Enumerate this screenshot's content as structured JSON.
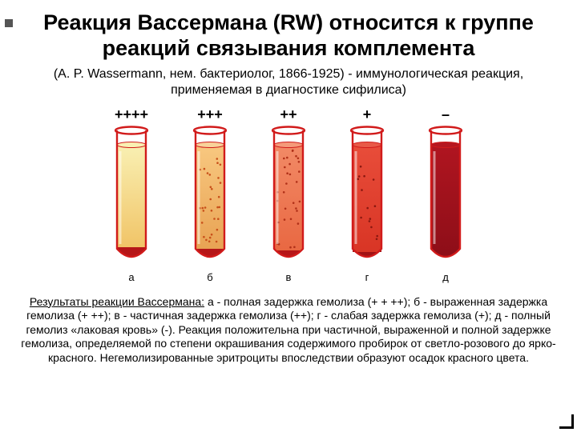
{
  "title": "Реакция Вассермана (RW) относится к группе реакций связывания комплемента",
  "subtitle": "(A. P. Wassermann, нем. бактериолог, 1866-1925) - иммунологическая реакция, применяемая в диагностике сифилиса)",
  "tubes": [
    {
      "top": "++++",
      "bottom": "а",
      "outline": "#d11b1b",
      "fill_top": "#f9f0b3",
      "fill_grad_from": "#f9f0b3",
      "fill_grad_to": "#f0c060",
      "sediment": "#b61618",
      "sediment_h": 14,
      "dots": "#d98820",
      "dot_density": 0
    },
    {
      "top": "+++",
      "bottom": "б",
      "outline": "#d11b1b",
      "fill_top": "#f8d29a",
      "fill_grad_from": "#f8c880",
      "fill_grad_to": "#e7a050",
      "sediment": "#b61618",
      "sediment_h": 12,
      "dots": "#c8501a",
      "dot_density": 30
    },
    {
      "top": "++",
      "bottom": "в",
      "outline": "#d11b1b",
      "fill_top": "#f49a7a",
      "fill_grad_from": "#f28a66",
      "fill_grad_to": "#e86640",
      "sediment": "#b61618",
      "sediment_h": 10,
      "dots": "#b03018",
      "dot_density": 30
    },
    {
      "top": "+",
      "bottom": "г",
      "outline": "#d11b1b",
      "fill_top": "#e85a48",
      "fill_grad_from": "#e84d3a",
      "fill_grad_to": "#d83424",
      "sediment": "#a01214",
      "sediment_h": 8,
      "dots": "#8a1810",
      "dot_density": 14
    },
    {
      "top": "–",
      "bottom": "д",
      "outline": "#d11b1b",
      "fill_top": "#b51720",
      "fill_grad_from": "#b01520",
      "fill_grad_to": "#8d0e18",
      "sediment": "#7a0c14",
      "sediment_h": 0,
      "dots": "#6a0c10",
      "dot_density": 0
    }
  ],
  "results_lead": "Результаты реакции Вассермана:",
  "results_body": " а - полная задержка гемолиза (+ + ++); б - выраженная задержка гемолиза (+ ++); в - частичная задержка гемолиза (++); г - слабая задержка гемолиза (+); д - полный гемолиз «лаковая кровь» (-). Реакция положительна при частичной, выраженной и полной задержке гемолиза, определяемой по степени окрашивания содержимого пробирок от светло-розового до ярко-красного. Негемолизированные эритроциты впоследствии образуют осадок красного цвета."
}
